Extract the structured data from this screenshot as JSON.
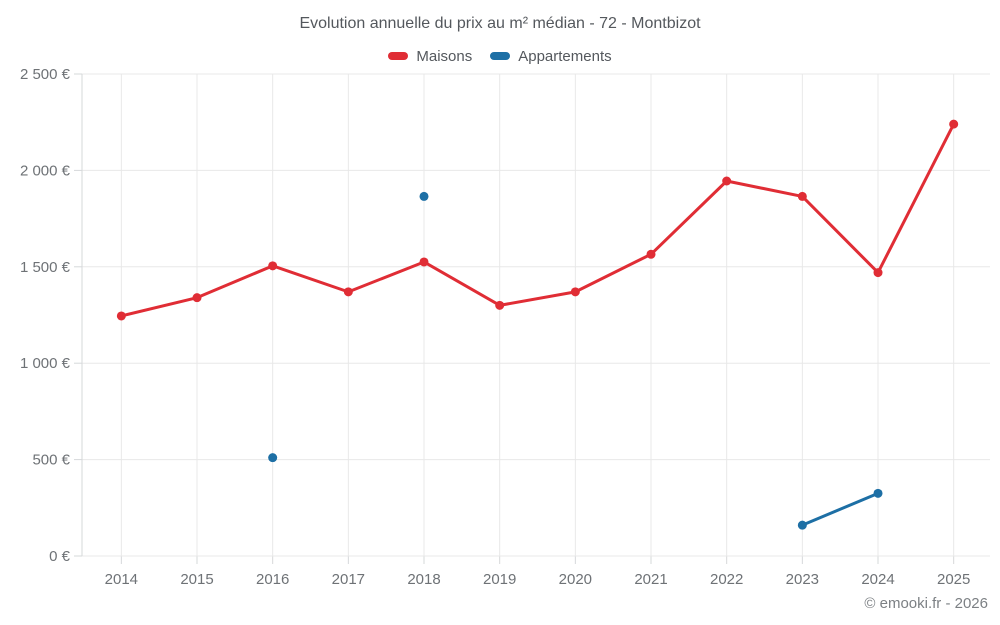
{
  "header": {
    "title": "Evolution annuelle du prix au m² médian - 72 - Montbizot"
  },
  "legend": {
    "items": [
      {
        "label": "Maisons",
        "color": "#e02d35"
      },
      {
        "label": "Appartements",
        "color": "#1d6fa5"
      }
    ]
  },
  "footer": {
    "copyright": "© emooki.fr - 2026"
  },
  "colors": {
    "maisons": "#e02d35",
    "appartements": "#1d6fa5",
    "gridline": "#e8e8e8",
    "axis": "#d6d8da",
    "tick_text": "#6e7276",
    "title_text": "#54585d"
  },
  "chart_data": {
    "type": "line",
    "title": "Evolution annuelle du prix au m² médian - 72 - Montbizot",
    "categories": [
      "2014",
      "2015",
      "2016",
      "2017",
      "2018",
      "2019",
      "2020",
      "2021",
      "2022",
      "2023",
      "2024",
      "2025"
    ],
    "series": [
      {
        "name": "Maisons",
        "color": "#e02d35",
        "values": [
          1245,
          1340,
          1505,
          1370,
          1525,
          1300,
          1370,
          1565,
          1945,
          1865,
          1470,
          2240
        ]
      },
      {
        "name": "Appartements",
        "color": "#1d6fa5",
        "values": [
          null,
          null,
          510,
          null,
          1865,
          null,
          null,
          null,
          null,
          160,
          325,
          null
        ]
      }
    ],
    "xlabel": "",
    "ylabel": "",
    "ylim": [
      0,
      2500
    ],
    "yticks": [
      {
        "value": 0,
        "label": "0 €"
      },
      {
        "value": 500,
        "label": "500 €"
      },
      {
        "value": 1000,
        "label": "1 000 €"
      },
      {
        "value": 1500,
        "label": "1 500 €"
      },
      {
        "value": 2000,
        "label": "2 000 €"
      },
      {
        "value": 2500,
        "label": "2 500 €"
      }
    ],
    "grid": true,
    "legend_position": "top"
  }
}
